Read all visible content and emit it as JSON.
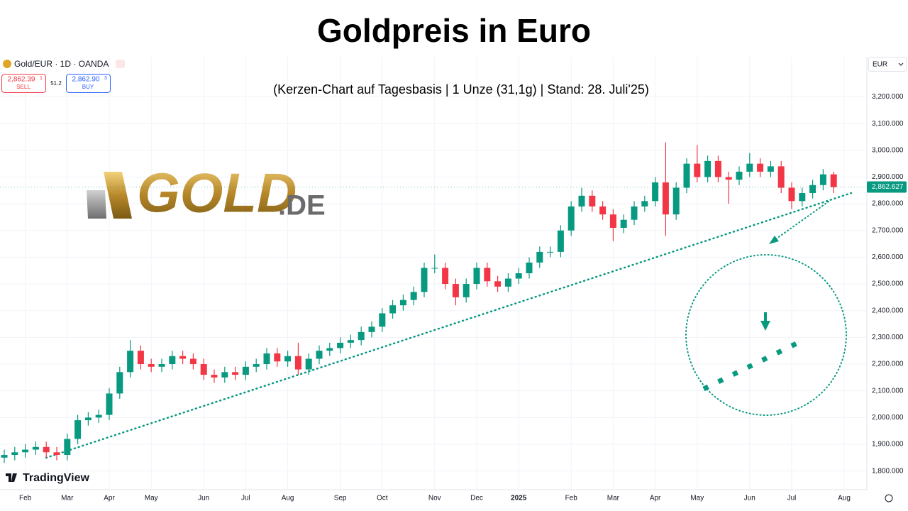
{
  "chart_data": {
    "type": "candlestick",
    "title": "Goldpreis in Euro",
    "subtitle": "(Kerzen-Chart auf Tagesbasis | 1 Unze (31,1g) | Stand: 28. Juli'25)",
    "symbol": "Gold/EUR · 1D · OANDA",
    "sell_price": "2,862.39",
    "sell_pip": "1",
    "sell_label": "SELL",
    "spread": "51.2",
    "buy_price": "2,862.90",
    "buy_pip": "3",
    "buy_label": "BUY",
    "currency": "EUR",
    "logo_main": "GOLD",
    "logo_suffix": ".DE",
    "watermark": "TradingView",
    "up_color": "#089981",
    "down_color": "#f23645",
    "last_price": {
      "value": 2862.627,
      "label": "2,862.627"
    },
    "categories": [
      null,
      null,
      "Feb",
      null,
      null,
      null,
      "Mar",
      null,
      null,
      null,
      "Apr",
      null,
      null,
      null,
      "May",
      null,
      null,
      null,
      null,
      "Jun",
      null,
      null,
      null,
      "Jul",
      null,
      null,
      null,
      "Aug",
      null,
      null,
      null,
      null,
      "Sep",
      null,
      null,
      null,
      "Oct",
      null,
      null,
      null,
      null,
      "Nov",
      null,
      null,
      null,
      "Dec",
      null,
      null,
      null,
      "2025",
      null,
      null,
      null,
      null,
      "Feb",
      null,
      null,
      null,
      "Mar",
      null,
      null,
      null,
      "Apr",
      null,
      null,
      null,
      "May",
      null,
      null,
      null,
      null,
      "Jun",
      null,
      null,
      null,
      "Jul",
      null,
      null,
      null,
      null,
      "Aug"
    ],
    "open": [
      1850,
      1860,
      1870,
      1880,
      1890,
      1870,
      1860,
      1920,
      1990,
      2000,
      2010,
      2090,
      2170,
      2250,
      2200,
      2190,
      2200,
      2230,
      2220,
      2200,
      2160,
      2150,
      2170,
      2160,
      2190,
      2200,
      2240,
      2210,
      2230,
      2180,
      2220,
      2250,
      2260,
      2280,
      2290,
      2320,
      2340,
      2390,
      2420,
      2440,
      2470,
      2560,
      2560,
      2500,
      2450,
      2500,
      2560,
      2510,
      2490,
      2520,
      2540,
      2580,
      2620,
      2620,
      2700,
      2790,
      2830,
      2790,
      2760,
      2710,
      2740,
      2790,
      2810,
      2880,
      2760,
      2860,
      2950,
      2900,
      2960,
      2900,
      2890,
      2920,
      2950,
      2920,
      2940,
      2860,
      2810,
      2840,
      2870,
      2910,
      null
    ],
    "high": [
      1880,
      1890,
      1900,
      1910,
      1910,
      1890,
      1940,
      2010,
      2020,
      2030,
      2110,
      2190,
      2290,
      2270,
      2220,
      2220,
      2250,
      2250,
      2240,
      2220,
      2180,
      2190,
      2190,
      2210,
      2220,
      2260,
      2260,
      2250,
      2280,
      2240,
      2270,
      2280,
      2300,
      2310,
      2340,
      2360,
      2410,
      2440,
      2460,
      2490,
      2580,
      2610,
      2580,
      2520,
      2520,
      2580,
      2580,
      2530,
      2540,
      2560,
      2600,
      2640,
      2640,
      2720,
      2810,
      2860,
      2850,
      2810,
      2780,
      2760,
      2810,
      2830,
      2900,
      3030,
      2880,
      2970,
      3020,
      2980,
      2980,
      2920,
      2940,
      2990,
      2970,
      2960,
      2960,
      2880,
      2860,
      2890,
      2930,
      2920,
      null
    ],
    "low": [
      1830,
      1840,
      1850,
      1860,
      1850,
      1840,
      1840,
      1900,
      1970,
      1980,
      1990,
      2070,
      2150,
      2180,
      2170,
      2170,
      2180,
      2200,
      2180,
      2140,
      2130,
      2130,
      2140,
      2140,
      2170,
      2180,
      2190,
      2190,
      2160,
      2160,
      2200,
      2230,
      2240,
      2260,
      2270,
      2300,
      2320,
      2370,
      2400,
      2420,
      2450,
      2540,
      2480,
      2420,
      2430,
      2480,
      2490,
      2470,
      2470,
      2500,
      2520,
      2560,
      2600,
      2600,
      2680,
      2770,
      2770,
      2740,
      2660,
      2690,
      2720,
      2770,
      2790,
      2680,
      2740,
      2840,
      2880,
      2880,
      2880,
      2800,
      2870,
      2900,
      2900,
      2900,
      2840,
      2780,
      2790,
      2820,
      2850,
      2840,
      null
    ],
    "close": [
      1860,
      1870,
      1880,
      1890,
      1870,
      1860,
      1920,
      1990,
      2000,
      2010,
      2090,
      2170,
      2250,
      2200,
      2190,
      2200,
      2230,
      2220,
      2200,
      2160,
      2150,
      2170,
      2160,
      2190,
      2200,
      2240,
      2210,
      2230,
      2180,
      2220,
      2250,
      2260,
      2280,
      2290,
      2320,
      2340,
      2390,
      2420,
      2440,
      2470,
      2560,
      2560,
      2500,
      2450,
      2500,
      2560,
      2510,
      2490,
      2520,
      2540,
      2580,
      2620,
      2620,
      2700,
      2790,
      2830,
      2790,
      2760,
      2710,
      2740,
      2790,
      2810,
      2880,
      2760,
      2860,
      2950,
      2900,
      2960,
      2900,
      2890,
      2920,
      2950,
      2920,
      2940,
      2860,
      2810,
      2840,
      2870,
      2910,
      2862,
      null
    ],
    "ylim": [
      1730,
      3350
    ],
    "yticks": [
      {
        "value": 1800,
        "label": "1,800.000"
      },
      {
        "value": 1900,
        "label": "1,900.000"
      },
      {
        "value": 2000,
        "label": "2,000.000"
      },
      {
        "value": 2100,
        "label": "2,100.000"
      },
      {
        "value": 2200,
        "label": "2,200.000"
      },
      {
        "value": 2300,
        "label": "2,300.000"
      },
      {
        "value": 2400,
        "label": "2,400.000"
      },
      {
        "value": 2500,
        "label": "2,500.000"
      },
      {
        "value": 2600,
        "label": "2,600.000"
      },
      {
        "value": 2700,
        "label": "2,700.000"
      },
      {
        "value": 2800,
        "label": "2,800.000"
      },
      {
        "value": 2900,
        "label": "2,900.000"
      },
      {
        "value": 3000,
        "label": "3,000.000"
      },
      {
        "value": 3100,
        "label": "3,100.000"
      },
      {
        "value": 3200,
        "label": "3,200.000"
      }
    ],
    "grid": true
  }
}
